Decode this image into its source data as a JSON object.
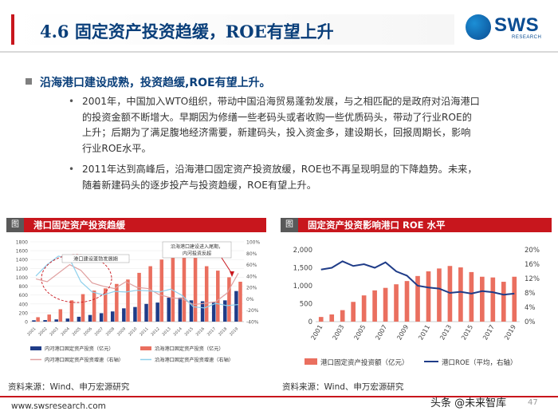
{
  "slide": {
    "title": "4.6 固定资产投资趋缓，ROE有望上升",
    "logo": {
      "brand": "SWS",
      "sub": "RESEARCH"
    },
    "heading": "沿海港口建设成熟，投资趋缓,ROE有望上升。",
    "paragraphs": [
      {
        "lines": [
          "2001年，中国加入WTO组织，带动中国沿海贸易蓬勃发展，与之相匹配的是政府对沿海港口",
          "的投资金额不断增大。早期因为修缮一些老码头或者收购一些优质码头，带动了行业ROE的",
          "上升；后期为了满足腹地经济需要，新建码头，投入资金多，建设期长，回报周期长，影响",
          "行业ROE水平。"
        ]
      },
      {
        "lines": [
          "2011年达到高峰后，沿海港口固定资产投资放缓，ROE也不再呈现明显的下降趋势。未来，",
          "随着新建码头的逐步投产与投资趋缓，ROE有望上升。"
        ]
      }
    ],
    "left_chart_header": {
      "tag": "图",
      "title": "港口固定资产投资趋缓"
    },
    "right_chart_header": {
      "tag": "图",
      "title": "固定资产投资影响港口 ROE 水平"
    },
    "source_left": "资料来源：Wind、申万宏源研究",
    "source_right": "资料来源：Wind、申万宏源研究",
    "footer_url": "www.swsresearch.com",
    "watermark": "头条 @未来智库",
    "page_number": "47",
    "colors": {
      "brand_red": "#c8161d",
      "navy": "#0a3f7a",
      "bar_red": "#ea6f5f",
      "line_blue": "#1f3c88"
    }
  },
  "chart_data": [
    {
      "type": "bar",
      "title": "港口固定资产投资趋缓",
      "categories": [
        "2001",
        "2002",
        "2003",
        "2004",
        "2005",
        "2006",
        "2007",
        "2008",
        "2009",
        "2010",
        "2011",
        "2012",
        "2013",
        "2014",
        "2015",
        "2016",
        "2017",
        "2018",
        "2019"
      ],
      "ylim_left": [
        0,
        1800
      ],
      "yticks_left": [
        0,
        200,
        400,
        600,
        800,
        1000,
        1200,
        1400,
        1600,
        1800
      ],
      "ylim_right": [
        -40,
        100
      ],
      "yticks_right": [
        "-40%",
        "-20%",
        "0%",
        "20%",
        "40%",
        "60%",
        "80%",
        "100%"
      ],
      "series": [
        {
          "name": "内河港口固定资产投资（亿元）",
          "kind": "bar",
          "axis": "left",
          "color": "#1f3c88",
          "values": [
            30,
            35,
            50,
            70,
            110,
            150,
            190,
            230,
            300,
            330,
            400,
            430,
            540,
            540,
            480,
            460,
            430,
            480,
            690
          ]
        },
        {
          "name": "沿海港口固定资产投资（亿元）",
          "kind": "bar",
          "axis": "left",
          "color": "#ea6f5f",
          "values": [
            100,
            160,
            280,
            480,
            620,
            700,
            750,
            850,
            950,
            1100,
            1250,
            1400,
            1650,
            1750,
            1500,
            1250,
            1150,
            1000,
            900
          ]
        },
        {
          "name": "内河港口固定资产投资增速（右轴）",
          "kind": "line",
          "axis": "right",
          "color": "#e0a0a0",
          "values": [
            35,
            30,
            45,
            60,
            50,
            28,
            22,
            18,
            30,
            20,
            18,
            7,
            2,
            0,
            -10,
            -8,
            -5,
            10,
            45
          ]
        },
        {
          "name": "沿海港口固定资产投资增速（右轴）",
          "kind": "line",
          "axis": "right",
          "color": "#8ed0ec",
          "values": [
            40,
            60,
            75,
            70,
            30,
            12,
            7,
            13,
            12,
            15,
            14,
            12,
            17,
            6,
            -14,
            -16,
            -8,
            -12,
            -10
          ]
        }
      ],
      "annotations": [
        "沿海港口建设进入尾期，内河投资反超",
        "港口建设蓬勃发展期"
      ]
    },
    {
      "type": "bar",
      "title": "固定资产投资影响港口 ROE 水平",
      "categories": [
        "2001",
        "2002",
        "2003",
        "2004",
        "2005",
        "2006",
        "2007",
        "2008",
        "2009",
        "2010",
        "2011",
        "2012",
        "2013",
        "2014",
        "2015",
        "2016",
        "2017",
        "2018",
        "2019"
      ],
      "xticks": [
        "2001",
        "2003",
        "2005",
        "2007",
        "2009",
        "2011",
        "2013",
        "2015",
        "2017",
        "2019"
      ],
      "ylim_left": [
        0,
        2000
      ],
      "yticks_left": [
        "0",
        "500",
        "1,000",
        "1,500",
        "2,000"
      ],
      "ylim_right": [
        0,
        20
      ],
      "yticks_right": [
        "0%",
        "4%",
        "8%",
        "12%",
        "16%",
        "20%"
      ],
      "series": [
        {
          "name": "港口固定资产投资额（亿元）",
          "kind": "bar",
          "axis": "left",
          "color": "#ea6f5f",
          "values": [
            130,
            200,
            320,
            550,
            730,
            870,
            940,
            1040,
            1130,
            1270,
            1400,
            1480,
            1550,
            1510,
            1380,
            1250,
            1230,
            1110,
            1250
          ]
        },
        {
          "name": "港口ROE（平均，右轴）",
          "kind": "line",
          "axis": "right",
          "color": "#1f3c88",
          "values": [
            14.5,
            15.0,
            16.8,
            15.5,
            16.0,
            15.0,
            16.5,
            14.0,
            12.8,
            10.0,
            9.5,
            9.2,
            8.0,
            8.3,
            7.8,
            8.5,
            8.2,
            7.5,
            7.8
          ]
        }
      ],
      "legend": [
        "港口固定资产投资额（亿元）",
        "港口ROE（平均，右轴）"
      ]
    }
  ]
}
